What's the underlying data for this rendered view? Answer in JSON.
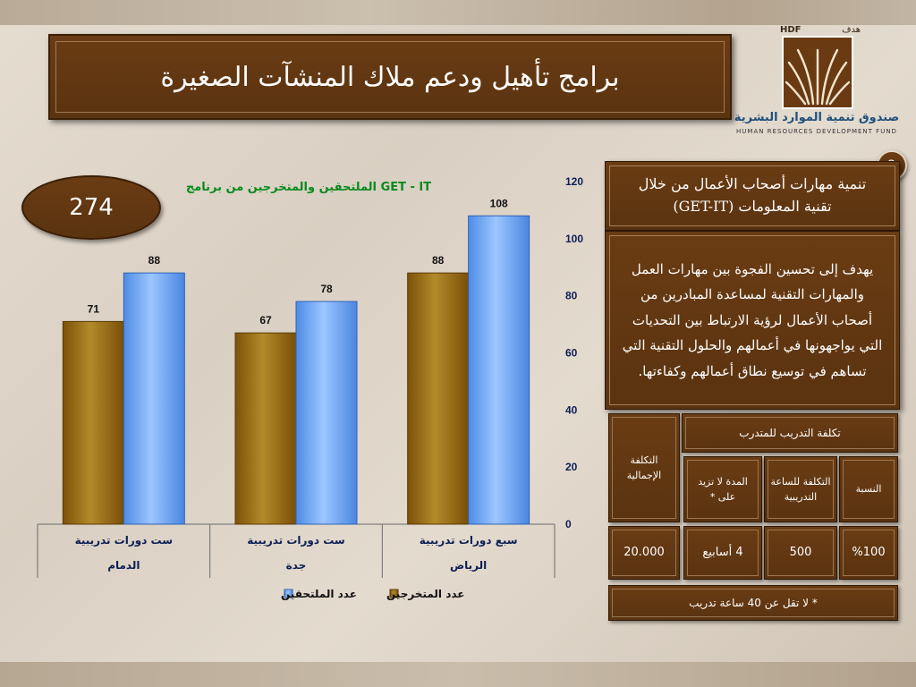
{
  "header": {
    "title": "برامج تأهيل ودعم ملاك المنشآت الصغيرة"
  },
  "logo": {
    "tag_ar": "هدف",
    "tag_en": "HDF",
    "name_ar": "صندوق تنمية الموارد البشرية",
    "name_en": "HUMAN RESOURCES DEVELOPMENT FUND"
  },
  "page_number": "2",
  "total_count": "274",
  "chart_data": {
    "type": "bar",
    "title": "الملتحقين والمتخرجين من برنامج  GET - IT",
    "categories": [
      {
        "line1": "ست دورات تدريبية",
        "line2": "الدمام"
      },
      {
        "line1": "ست دورات تدريبية",
        "line2": "جدة"
      },
      {
        "line1": "سبع دورات تدريبية",
        "line2": "الرياض"
      }
    ],
    "series": [
      {
        "name": "عدد المتخرجين",
        "color": "#9a6b14",
        "values": [
          71,
          67,
          88
        ]
      },
      {
        "name": "عدد الملتحقين",
        "color": "#5f9df0",
        "values": [
          88,
          78,
          108
        ]
      }
    ],
    "ylim": [
      0,
      120
    ],
    "yticks": [
      0,
      20,
      40,
      60,
      80,
      100,
      120
    ],
    "yaxis_side": "right",
    "legend_position": "bottom",
    "data_labels": true
  },
  "info": {
    "heading_line1": "تنمية مهارات أصحاب الأعمال من خلال",
    "heading_line2": "تقنية المعلومات (GET-IT)",
    "description": "يهدف إلى تحسين الفجوة بين مهارات العمل والمهارات التقنية لمساعدة المبادرين من أصحاب الأعمال لرؤية الارتباط بين التحديات التي يواجهونها في أعمالهم والحلول التقنية التي تساهم في توسيع نطاق أعمالهم وكفاءتها."
  },
  "cost_table": {
    "header_total": "التكلفة الإجمالية",
    "header_group": "تكلفة التدريب للمتدرب",
    "header_ratio": "النسبة",
    "header_hour": "التكلفة للساعة التدريبية",
    "header_duration": "المدة لا تزيد على *",
    "value_total": "20.000",
    "value_duration": "4 أسابيع",
    "value_hour": "500",
    "value_ratio": "%100",
    "footnote": "* لا تقل عن 40 ساعة تدريب"
  }
}
